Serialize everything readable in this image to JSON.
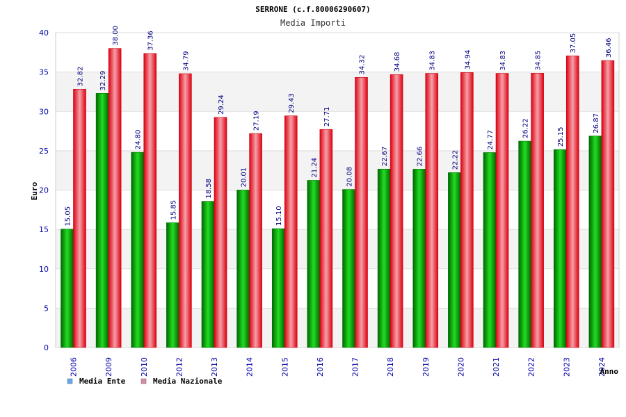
{
  "chart_data": {
    "type": "bar",
    "title": "SERRONE (c.f.80006290607)",
    "subtitle": "Media Importi",
    "ylabel": "Euro",
    "xlabel": "Anno",
    "ylim": [
      0,
      40
    ],
    "yticks": [
      0,
      5,
      10,
      15,
      20,
      25,
      30,
      35,
      40
    ],
    "grid": true,
    "legend_position": "bottom-left",
    "categories": [
      "2006",
      "2009",
      "2010",
      "2012",
      "2013",
      "2014",
      "2015",
      "2016",
      "2017",
      "2018",
      "2019",
      "2020",
      "2021",
      "2022",
      "2023",
      "2024"
    ],
    "series": [
      {
        "name": "Media Ente",
        "color": "#00aa00",
        "legend_color": "#66aaee",
        "values": [
          15.05,
          32.29,
          24.8,
          15.85,
          18.58,
          20.01,
          15.1,
          21.24,
          20.08,
          22.67,
          22.66,
          22.22,
          24.77,
          26.22,
          25.15,
          26.87
        ],
        "labels": [
          "15.05",
          "32.29",
          "24.80",
          "15.85",
          "18.58",
          "20.01",
          "15.10",
          "21.24",
          "20.08",
          "22.67",
          "22.66",
          "22.22",
          "24.77",
          "26.22",
          "25.15",
          "26.87"
        ]
      },
      {
        "name": "Media Nazionale",
        "color": "#ee1122",
        "legend_color": "#dd88aa",
        "values": [
          32.82,
          38.0,
          37.36,
          34.79,
          29.24,
          27.19,
          29.43,
          27.71,
          34.32,
          34.68,
          34.83,
          34.94,
          34.83,
          34.85,
          37.05,
          36.46
        ],
        "labels": [
          "32.82",
          "38.00",
          "37.36",
          "34.79",
          "29.24",
          "27.19",
          "29.43",
          "27.71",
          "34.32",
          "34.68",
          "34.83",
          "34.94",
          "34.83",
          "34.85",
          "37.05",
          "36.46"
        ]
      }
    ]
  }
}
